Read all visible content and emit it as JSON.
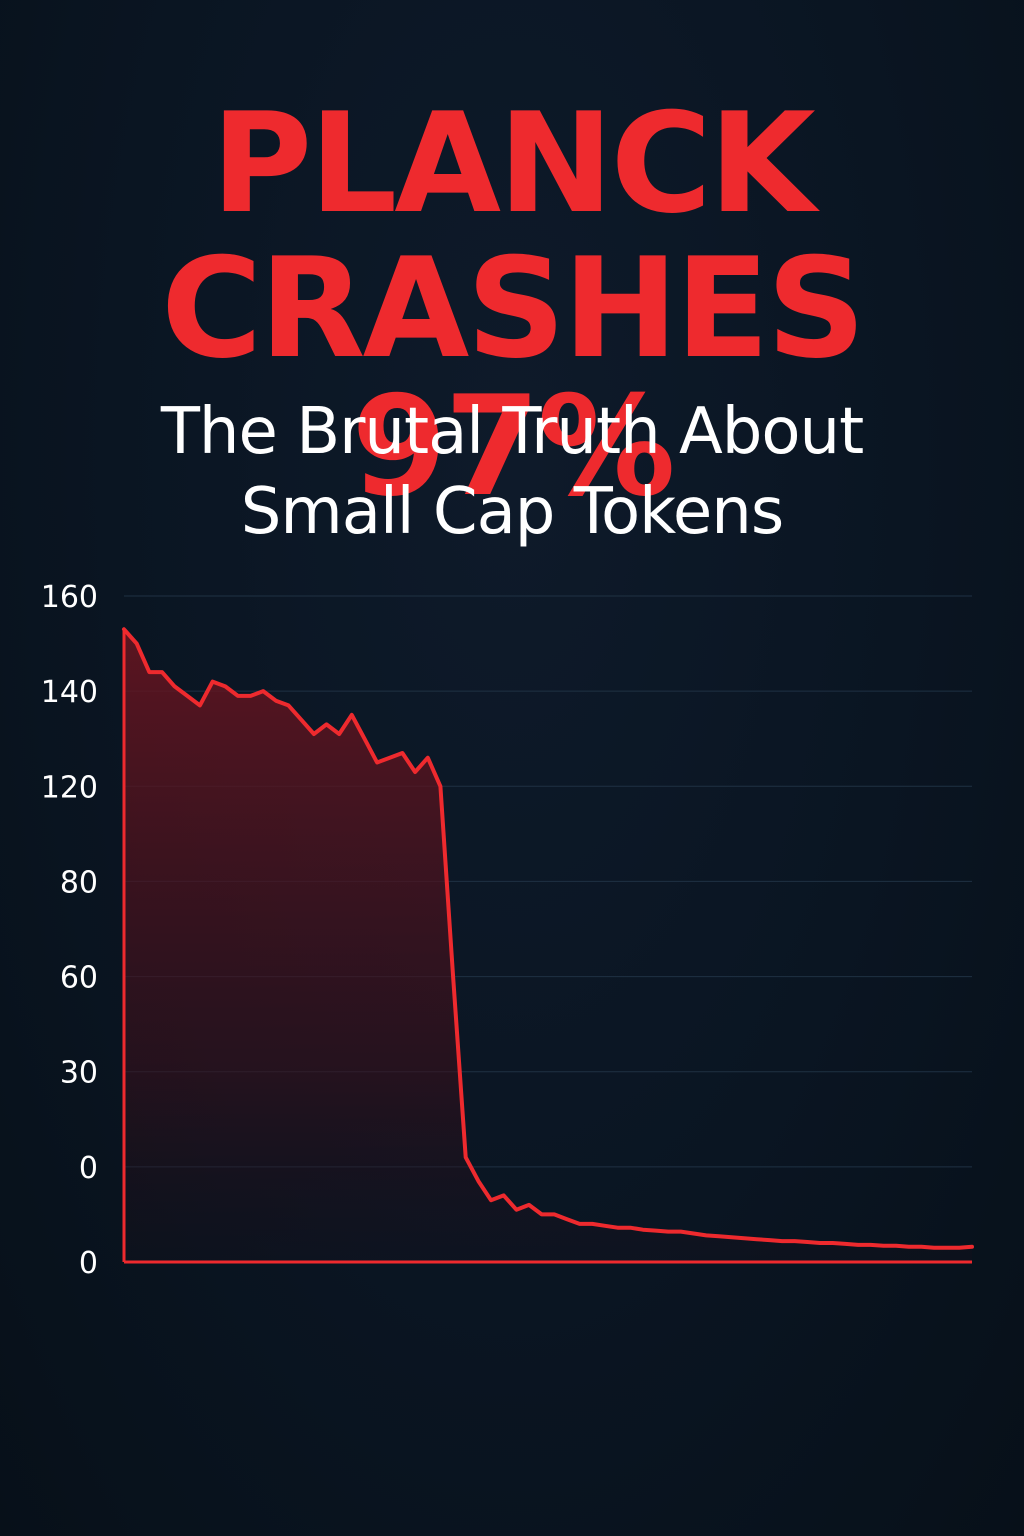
{
  "headline": {
    "line1": "PLANCK",
    "line2": "CRASHES 97%"
  },
  "subtitle": {
    "line1": "The Brutal Truth About",
    "line2": "Small Cap Tokens"
  },
  "colors": {
    "accent": "#ee2a2e",
    "background": "#0a1522",
    "text": "#ffffff",
    "grid": "#1f3143"
  },
  "chart_data": {
    "type": "area",
    "title": "",
    "xlabel": "",
    "ylabel": "",
    "grid": true,
    "legend": "none",
    "y_tick_labels": [
      "160",
      "140",
      "120",
      "80",
      "60",
      "30",
      "0",
      "0"
    ],
    "note": "y tick labels are printed as shown (non-uniform); series values are given as positions along that tick ladder (0 = bottom tick, 7 = top tick)",
    "series": [
      {
        "values": [
          6.65,
          6.5,
          6.2,
          6.2,
          6.05,
          5.95,
          5.85,
          6.1,
          6.05,
          5.95,
          5.95,
          6.0,
          5.9,
          5.85,
          5.7,
          5.55,
          5.65,
          5.55,
          5.75,
          5.5,
          5.25,
          5.3,
          5.35,
          5.15,
          5.3,
          5.0,
          3.0,
          1.1,
          0.85,
          0.65,
          0.7,
          0.55,
          0.6,
          0.5,
          0.5,
          0.45,
          0.4,
          0.4,
          0.38,
          0.36,
          0.36,
          0.34,
          0.33,
          0.32,
          0.32,
          0.3,
          0.28,
          0.27,
          0.26,
          0.25,
          0.24,
          0.23,
          0.22,
          0.22,
          0.21,
          0.2,
          0.2,
          0.19,
          0.18,
          0.18,
          0.17,
          0.17,
          0.16,
          0.16,
          0.15,
          0.15,
          0.15,
          0.16
        ]
      }
    ]
  }
}
